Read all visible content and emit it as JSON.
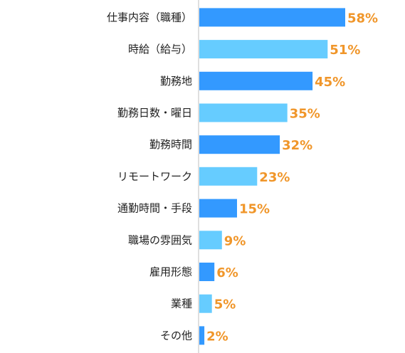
{
  "chart_data": {
    "type": "bar",
    "orientation": "horizontal",
    "title": "",
    "xlabel": "",
    "ylabel": "",
    "xlim": [
      0,
      100
    ],
    "grid": false,
    "legend": "none",
    "categories": [
      "仕事内容（職種）",
      "時給（給与）",
      "勤務地",
      "勤務日数・曜日",
      "勤務時間",
      "リモートワーク",
      "通勤時間・手段",
      "職場の雰囲気",
      "雇用形態",
      "業種",
      "その他"
    ],
    "values": [
      58,
      51,
      45,
      35,
      32,
      23,
      15,
      9,
      6,
      5,
      2
    ],
    "value_labels": [
      "58%",
      "51%",
      "45%",
      "35%",
      "32%",
      "23%",
      "15%",
      "9%",
      "6%",
      "5%",
      "2%"
    ],
    "colors": {
      "bar_dark": "#3399ff",
      "bar_light": "#66ccff",
      "value_text": "#f0962a",
      "axis": "#bfbfbf"
    }
  }
}
